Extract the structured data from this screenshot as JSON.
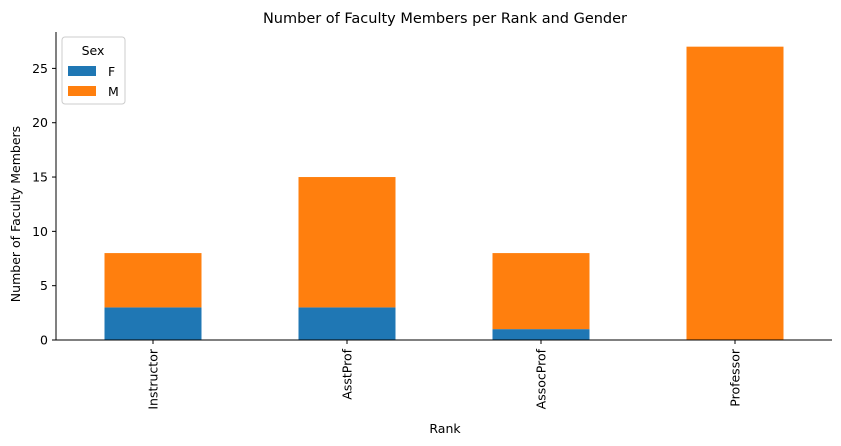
{
  "chart_data": {
    "type": "bar",
    "stacked": true,
    "title": "Number of Faculty Members per Rank and Gender",
    "xlabel": "Rank",
    "ylabel": "Number of Faculty Members",
    "categories": [
      "Instructor",
      "AsstProf",
      "AssocProf",
      "Professor"
    ],
    "series": [
      {
        "name": "F",
        "values": [
          3,
          3,
          1,
          0
        ],
        "color": "#1f77b4"
      },
      {
        "name": "M",
        "values": [
          5,
          12,
          7,
          27
        ],
        "color": "#ff7f0e"
      }
    ],
    "ylim": [
      0,
      28.35
    ],
    "yticks": [
      0,
      5,
      10,
      15,
      20,
      25
    ],
    "grid": false,
    "legend": {
      "title": "Sex",
      "placement": "top-left"
    }
  }
}
